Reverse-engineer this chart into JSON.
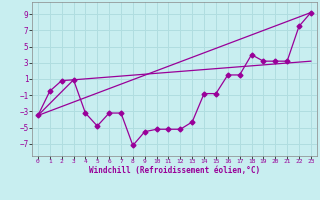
{
  "xlabel": "Windchill (Refroidissement éolien,°C)",
  "bg_color": "#c8eef0",
  "line_color": "#990099",
  "grid_color": "#b0dde0",
  "xlim": [
    -0.5,
    23.5
  ],
  "ylim": [
    -8.5,
    10.5
  ],
  "yticks": [
    -7,
    -5,
    -3,
    -1,
    1,
    3,
    5,
    7,
    9
  ],
  "xticks": [
    0,
    1,
    2,
    3,
    4,
    5,
    6,
    7,
    8,
    9,
    10,
    11,
    12,
    13,
    14,
    15,
    16,
    17,
    18,
    19,
    20,
    21,
    22,
    23
  ],
  "line1_x": [
    0,
    1,
    2,
    3,
    4,
    5,
    6,
    7,
    8,
    9,
    10,
    11,
    12,
    13,
    14,
    15,
    16,
    17,
    18,
    19,
    20,
    21,
    22,
    23
  ],
  "line1_y": [
    -3.5,
    -0.5,
    0.8,
    0.9,
    -3.2,
    -4.8,
    -3.2,
    -3.2,
    -7.2,
    -5.5,
    -5.2,
    -5.2,
    -5.2,
    -4.3,
    -0.8,
    -0.8,
    1.5,
    1.5,
    4.0,
    3.2,
    3.2,
    3.2,
    7.5,
    9.2
  ],
  "line2_x": [
    0,
    23
  ],
  "line2_y": [
    -3.5,
    9.2
  ],
  "line3_x": [
    0,
    3,
    23
  ],
  "line3_y": [
    -3.5,
    0.9,
    3.2
  ]
}
